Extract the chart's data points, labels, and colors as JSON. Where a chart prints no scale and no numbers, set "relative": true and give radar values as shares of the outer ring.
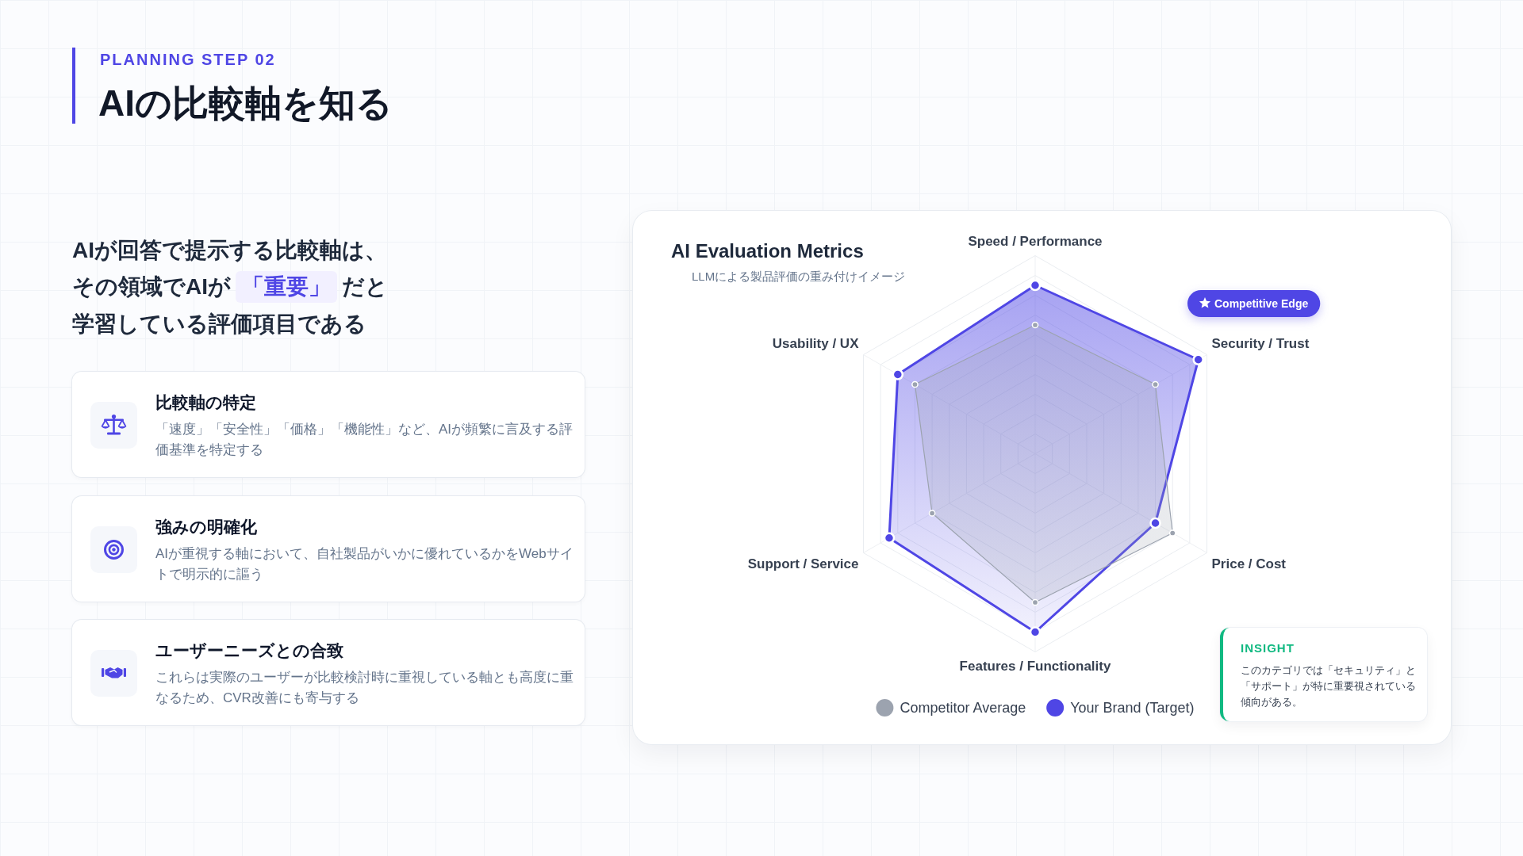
{
  "chart_data": {
    "type": "radar",
    "title": "AI Evaluation Metrics",
    "subtitle": "LLMによる製品評価の重み付けイメージ",
    "categories": [
      "Speed / Performance",
      "Security / Trust",
      "Price / Cost",
      "Features / Functionality",
      "Support / Service",
      "Usability / UX"
    ],
    "relative": true,
    "series": [
      {
        "name": "Competitor Average",
        "color": "#9ca3af",
        "values": [
          0.65,
          0.7,
          0.8,
          0.75,
          0.6,
          0.7
        ]
      },
      {
        "name": "Your Brand (Target)",
        "color": "#4f46e5",
        "values": [
          0.85,
          0.95,
          0.7,
          0.9,
          0.85,
          0.8
        ]
      }
    ],
    "grid": true,
    "legend": "bottom",
    "marker": "circle",
    "annotations": [
      "PLANNING STEP 02",
      "AIの比較軸を知る",
      "AIが回答で提示する比較軸は、",
      "その領域でAIが",
      "「重要」",
      "だと",
      "学習している評価項目である",
      "比較軸の特定",
      "「速度」「安全性」「価格」「機能性」など、AIが頻繁に言及する評価基準を特定する",
      "強みの明確化",
      "AIが重視する軸において、自社製品がいかに優れているかをWebサイトで明示的に謳う",
      "ユーザーニーズとの合致",
      "これらは実際のユーザーが比較検討時に重視している軸とも高度に重なるため、CVR改善にも寄与する",
      "Competitive Edge",
      "INSIGHT",
      "このカテゴリでは「セキュリティ」と「サポート」が特に重要視されている傾向がある。"
    ]
  }
}
